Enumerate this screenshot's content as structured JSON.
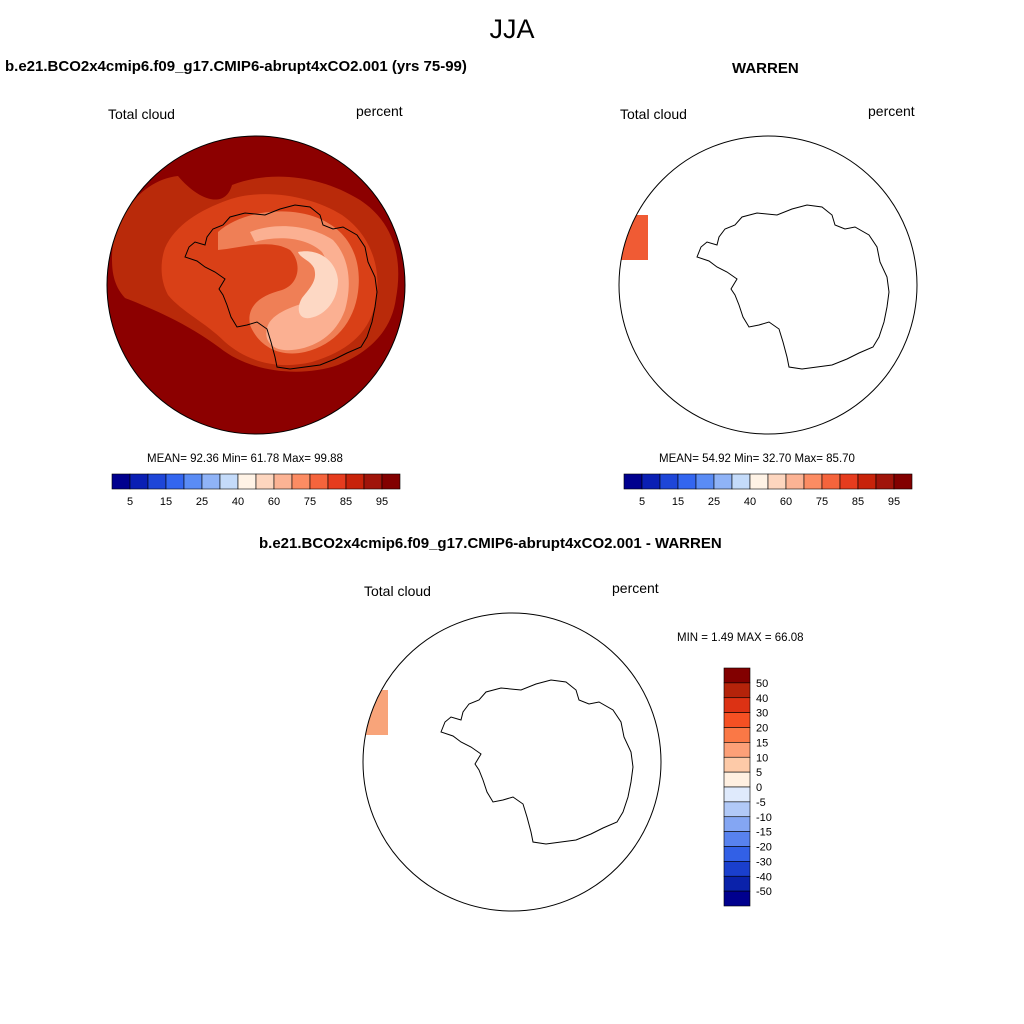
{
  "title": "JJA",
  "panels": {
    "model": {
      "title": "b.e21.BCO2x4cmip6.f09_g17.CMIP6-abrupt4xCO2.001 (yrs 75-99)",
      "left_label": "Total cloud",
      "right_label": "percent",
      "stats": "MEAN=  92.36  Min=  61.78  Max=  99.88"
    },
    "obs": {
      "title": "WARREN",
      "left_label": "Total cloud",
      "right_label": "percent",
      "stats": "MEAN=  54.92  Min=  32.70  Max=  85.70"
    },
    "diff": {
      "title": "b.e21.BCO2x4cmip6.f09_g17.CMIP6-abrupt4xCO2.001 - WARREN",
      "left_label": "Total cloud",
      "right_label": "percent",
      "stats": "MIN =   1.49 MAX =  66.08"
    }
  },
  "colorbar_abs": {
    "ticks": [
      "5",
      "15",
      "25",
      "40",
      "60",
      "75",
      "85",
      "95"
    ],
    "colors": [
      "#00008e",
      "#0a1fb4",
      "#1e46d8",
      "#3366f0",
      "#5a8cf5",
      "#8fb3f7",
      "#c4dbfa",
      "#fff3e6",
      "#fdd6bf",
      "#fcb394",
      "#fc8c63",
      "#f5643c",
      "#e63c1e",
      "#c8230a",
      "#a0140a",
      "#820000"
    ]
  },
  "colorbar_diff": {
    "ticks": [
      "50",
      "40",
      "30",
      "20",
      "15",
      "10",
      "5",
      "0",
      "-5",
      "-10",
      "-15",
      "-20",
      "-30",
      "-40",
      "-50"
    ],
    "colors": [
      "#820000",
      "#b4230a",
      "#dc3214",
      "#f55023",
      "#fa7846",
      "#fca078",
      "#fdcaa8",
      "#fff0e1",
      "#dfeafc",
      "#b1c9f7",
      "#84a6f3",
      "#5882ee",
      "#3260e6",
      "#1a3fcd",
      "#0a22aa",
      "#00008e"
    ]
  },
  "map_fields": {
    "model_field_colors": {
      "background": "#8c0000",
      "band1": "#b92a0a",
      "band2": "#d94017",
      "band3": "#ef7f56",
      "band4": "#fbb092",
      "band5": "#fdd8c4"
    },
    "obs_strip_color": "#f05b34",
    "diff_strip_color": "#f8a47a"
  }
}
